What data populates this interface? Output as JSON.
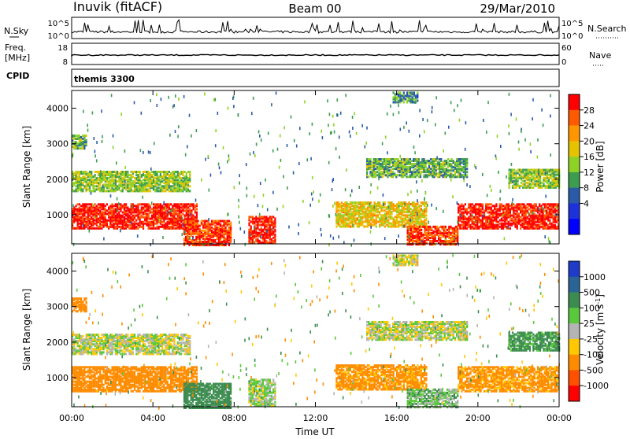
{
  "header": {
    "station": "Inuvik (fitACF)",
    "beam": "Beam 00",
    "date": "29/Mar/2010"
  },
  "nsky_panel": {
    "left_label": "N.Sky",
    "right_label": "N.Search",
    "left_ticks": [
      "10^5",
      "10^0"
    ],
    "right_ticks": [
      "10^5",
      "10^0"
    ]
  },
  "freq_panel": {
    "left_label_line1": "Freq.",
    "left_label_line2": "[MHz]",
    "right_label": "Nave",
    "left_ticks": [
      "18",
      "8"
    ],
    "right_ticks": [
      "60",
      "0"
    ]
  },
  "cpid_panel": {
    "label": "CPID",
    "value": "themis 3300"
  },
  "chart_data": [
    {
      "type": "heatmap",
      "name": "power",
      "ylabel": "Slant Range [km]",
      "xlabel": "",
      "ylim": [
        180,
        4500
      ],
      "yticks": [
        "1000",
        "2000",
        "3000",
        "4000"
      ],
      "xlim_hours": [
        0,
        24
      ],
      "colorbar": {
        "label": "Power [dB]",
        "ticks": [
          "28",
          "24",
          "20",
          "16",
          "12",
          "8",
          "4"
        ],
        "colors": [
          "#ff0000",
          "#ff5a00",
          "#ff9600",
          "#e6c300",
          "#8fd226",
          "#3c9c50",
          "#2a5aa8",
          "#1e32dc",
          "#0000ff"
        ]
      },
      "echo_bands": [
        {
          "start": 0.0,
          "end": 6.2,
          "r_lo": 650,
          "r_hi": 1350,
          "power": 28
        },
        {
          "start": 0.0,
          "end": 5.8,
          "r_lo": 1700,
          "r_hi": 2250,
          "power": 14
        },
        {
          "start": 0.0,
          "end": 0.7,
          "r_lo": 2900,
          "r_hi": 3300,
          "power": 12
        },
        {
          "start": 5.5,
          "end": 7.8,
          "r_lo": 180,
          "r_hi": 900,
          "power": 26
        },
        {
          "start": 8.7,
          "end": 10.0,
          "r_lo": 250,
          "r_hi": 1000,
          "power": 28
        },
        {
          "start": 13.0,
          "end": 17.5,
          "r_lo": 700,
          "r_hi": 1400,
          "power": 18
        },
        {
          "start": 16.5,
          "end": 19.0,
          "r_lo": 200,
          "r_hi": 700,
          "power": 26
        },
        {
          "start": 19.0,
          "end": 24.0,
          "r_lo": 650,
          "r_hi": 1350,
          "power": 28
        },
        {
          "start": 14.5,
          "end": 19.5,
          "r_lo": 2100,
          "r_hi": 2600,
          "power": 12
        },
        {
          "start": 15.8,
          "end": 17.0,
          "r_lo": 4200,
          "r_hi": 4500,
          "power": 10
        },
        {
          "start": 21.5,
          "end": 24.0,
          "r_lo": 1800,
          "r_hi": 2300,
          "power": 14
        }
      ]
    },
    {
      "type": "heatmap",
      "name": "velocity",
      "ylabel": "Slant Range [km]",
      "xlabel": "Time UT",
      "ylim": [
        180,
        4500
      ],
      "yticks": [
        "1000",
        "2000",
        "3000",
        "4000"
      ],
      "xticks": [
        "00:00",
        "04:00",
        "08:00",
        "12:00",
        "16:00",
        "20:00",
        "00:00"
      ],
      "colorbar": {
        "label": "Velocity  [m s^-1]",
        "ticks": [
          "1000",
          "500",
          "100",
          "25",
          "-25",
          "-100",
          "-500",
          "-1000"
        ],
        "colors": [
          "#1e3cc8",
          "#2a6496",
          "#3c8c50",
          "#5ac83c",
          "#b4b4b4",
          "#ffc800",
          "#ff8c00",
          "#ff5000",
          "#ff0000"
        ]
      },
      "echo_bands": [
        {
          "start": 0.0,
          "end": 6.2,
          "r_lo": 650,
          "r_hi": 1350,
          "velocity": -300
        },
        {
          "start": 0.0,
          "end": 5.8,
          "r_lo": 1700,
          "r_hi": 2250,
          "velocity": 0
        },
        {
          "start": 0.0,
          "end": 0.7,
          "r_lo": 2900,
          "r_hi": 3300,
          "velocity": -300
        },
        {
          "start": 5.5,
          "end": 7.8,
          "r_lo": 180,
          "r_hi": 900,
          "velocity": 200
        },
        {
          "start": 8.7,
          "end": 10.0,
          "r_lo": 250,
          "r_hi": 1000,
          "velocity": 30
        },
        {
          "start": 13.0,
          "end": 17.5,
          "r_lo": 700,
          "r_hi": 1400,
          "velocity": -150
        },
        {
          "start": 16.5,
          "end": 19.0,
          "r_lo": 200,
          "r_hi": 700,
          "velocity": 60
        },
        {
          "start": 19.0,
          "end": 24.0,
          "r_lo": 650,
          "r_hi": 1350,
          "velocity": -150
        },
        {
          "start": 14.5,
          "end": 19.5,
          "r_lo": 2100,
          "r_hi": 2600,
          "velocity": 0
        },
        {
          "start": 15.8,
          "end": 17.0,
          "r_lo": 4200,
          "r_hi": 4500,
          "velocity": 0
        },
        {
          "start": 21.5,
          "end": 24.0,
          "r_lo": 1800,
          "r_hi": 2300,
          "velocity": 150
        }
      ]
    }
  ]
}
